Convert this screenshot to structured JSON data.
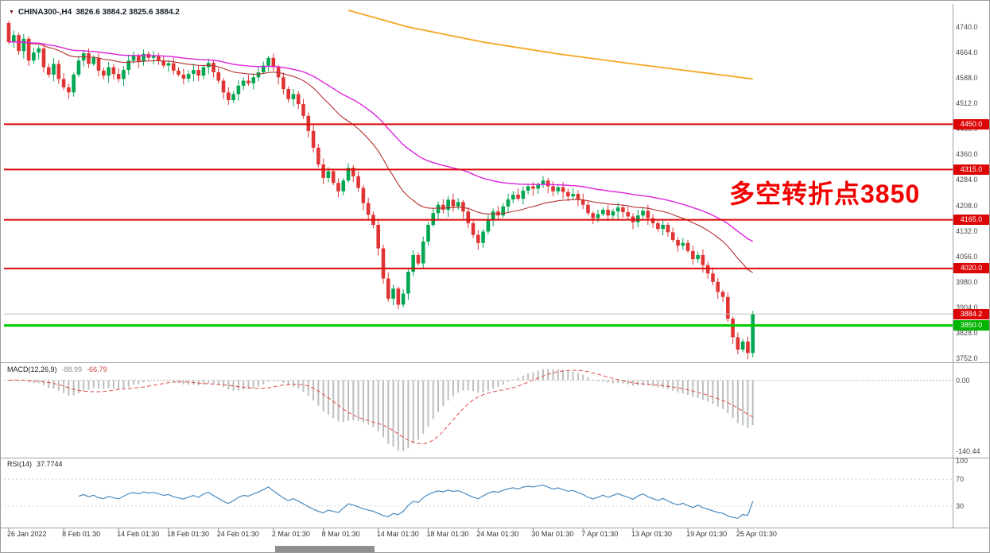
{
  "window": {
    "symbol_label": "CHINA300-,H4",
    "ohlc": "3826.6 3884.2 3825.6 3884.2",
    "annotation": "多空转折点3850"
  },
  "colors": {
    "background": "#ffffff",
    "up_candle": "#00a651",
    "down_candle": "#e03434",
    "ma_fast": "#b53030",
    "ma_slow": "#dd22dd",
    "ma_long": "#f5a623",
    "resistance_line": "#dd0606",
    "pivot_line": "#00ca00",
    "last_price_line": "#bdbdbd",
    "macd_histogram": "#bdbdbd",
    "macd_signal": "#e04848",
    "rsi_line": "#4a8bc2",
    "badge_red": "#dd0606",
    "badge_green": "#00b400",
    "annotation": "#f20000"
  },
  "main_chart": {
    "price_axis_labels": [
      "4740.0",
      "4664.0",
      "4588.0",
      "4512.0",
      "4436.0",
      "4360.0",
      "4284.0",
      "4208.0",
      "4132.0",
      "4056.0",
      "3980.0",
      "3904.0",
      "3828.0",
      "3752.0"
    ],
    "hlines": [
      {
        "price": 4450.0,
        "color": "#dd0606",
        "width": 2,
        "name": "resistance-line-4450"
      },
      {
        "price": 4315.0,
        "color": "#dd0606",
        "width": 2,
        "name": "resistance-line-4315"
      },
      {
        "price": 4165.0,
        "color": "#dd0606",
        "width": 2,
        "name": "resistance-line-4165"
      },
      {
        "price": 4020.0,
        "color": "#dd0606",
        "width": 2,
        "name": "resistance-line-4020"
      },
      {
        "price": 3884.2,
        "color": "#bdbdbd",
        "width": 1,
        "name": "last-price-line"
      },
      {
        "price": 3850.0,
        "color": "#00ca00",
        "width": 3,
        "name": "pivot-line-3850"
      }
    ],
    "badges": [
      {
        "text": "4450.0",
        "price": 4450.0,
        "color": "red"
      },
      {
        "text": "4315.0",
        "price": 4315.0,
        "color": "red"
      },
      {
        "text": "4165.0",
        "price": 4165.0,
        "color": "red"
      },
      {
        "text": "4020.0",
        "price": 4020.0,
        "color": "red"
      },
      {
        "text": "3884.2",
        "price": 3884.2,
        "color": "red"
      },
      {
        "text": "3850.0",
        "price": 3850.0,
        "color": "green"
      }
    ]
  },
  "macd": {
    "label": "MACD(12,26,9)",
    "value_main": "-88.99",
    "value_signal": "-66.79",
    "axis_labels": [
      {
        "text": "0.00",
        "at": "zero"
      },
      {
        "text": "-140.44",
        "at": "bottom"
      }
    ]
  },
  "rsi": {
    "label": "RSI(14)",
    "value": "37.7744",
    "axis_labels": [
      {
        "text": "100",
        "v": 100
      },
      {
        "text": "70",
        "v": 70
      },
      {
        "text": "30",
        "v": 30
      }
    ],
    "levels": [
      70,
      30
    ]
  },
  "chart_data": [
    {
      "type": "candlestick",
      "title": "CHINA300-,H4",
      "symbol": "CHINA300",
      "timeframe": "H4",
      "ohlc_display": {
        "open": 3826.6,
        "high": 3884.2,
        "low": 3825.6,
        "close": 3884.2
      },
      "ylim": [
        3740,
        4808
      ],
      "y_tick_step": 76.0,
      "hlines": [
        4450.0,
        4315.0,
        4165.0,
        4020.0,
        3850.0
      ],
      "last_price": 3884.2,
      "open_first": 4752,
      "closes": [
        4695,
        4716,
        4668,
        4705,
        4640,
        4664,
        4676,
        4620,
        4598,
        4630,
        4585,
        4560,
        4545,
        4598,
        4640,
        4662,
        4630,
        4648,
        4610,
        4595,
        4620,
        4600,
        4585,
        4612,
        4640,
        4655,
        4638,
        4660,
        4648,
        4655,
        4640,
        4625,
        4632,
        4610,
        4598,
        4586,
        4600,
        4612,
        4595,
        4620,
        4633,
        4605,
        4580,
        4545,
        4522,
        4540,
        4565,
        4580,
        4572,
        4590,
        4605,
        4625,
        4648,
        4620,
        4590,
        4555,
        4525,
        4540,
        4510,
        4475,
        4430,
        4380,
        4330,
        4290,
        4310,
        4275,
        4250,
        4282,
        4320,
        4295,
        4260,
        4215,
        4180,
        4150,
        4080,
        3990,
        3930,
        3960,
        3912,
        3945,
        4010,
        4060,
        4035,
        4100,
        4150,
        4185,
        4210,
        4195,
        4225,
        4205,
        4218,
        4190,
        4155,
        4120,
        4096,
        4130,
        4165,
        4190,
        4178,
        4205,
        4226,
        4240,
        4228,
        4252,
        4265,
        4258,
        4270,
        4282,
        4265,
        4250,
        4262,
        4248,
        4235,
        4242,
        4225,
        4210,
        4185,
        4170,
        4182,
        4195,
        4178,
        4190,
        4202,
        4188,
        4175,
        4158,
        4178,
        4192,
        4170,
        4155,
        4138,
        4150,
        4128,
        4105,
        4088,
        4096,
        4072,
        4048,
        4060,
        4030,
        4005,
        3980,
        3950,
        3935,
        3870,
        3815,
        3778,
        3802,
        3768,
        3884.2
      ],
      "moving_averages": [
        {
          "name": "ma-fast",
          "period": 30,
          "color": "#b53030"
        },
        {
          "name": "ma-slow",
          "period": 60,
          "color": "#dd22dd"
        }
      ],
      "orange_ma_points": [
        [
          68,
          4790
        ],
        [
          80,
          4740
        ],
        [
          95,
          4695
        ],
        [
          110,
          4660
        ],
        [
          125,
          4630
        ],
        [
          140,
          4602
        ],
        [
          149,
          4585
        ]
      ],
      "x_tick_labels": [
        {
          "text": "26 Jan 2022",
          "i": 0
        },
        {
          "text": "8 Feb 01:30",
          "i": 11
        },
        {
          "text": "14 Feb 01:30",
          "i": 22
        },
        {
          "text": "18 Feb 01:30",
          "i": 32
        },
        {
          "text": "24 Feb 01:30",
          "i": 42
        },
        {
          "text": "2 Mar 01:30",
          "i": 53
        },
        {
          "text": "8 Mar 01:30",
          "i": 63
        },
        {
          "text": "14 Mar 01:30",
          "i": 74
        },
        {
          "text": "18 Mar 01:30",
          "i": 84
        },
        {
          "text": "24 Mar 01:30",
          "i": 94
        },
        {
          "text": "30 Mar 01:30",
          "i": 105
        },
        {
          "text": "7 Apr 01:30",
          "i": 115
        },
        {
          "text": "13 Apr 01:30",
          "i": 125
        },
        {
          "text": "19 Apr 01:30",
          "i": 136
        },
        {
          "text": "25 Apr 01:30",
          "i": 146
        }
      ]
    },
    {
      "type": "macd",
      "label": "MACD(12,26,9)",
      "fast": 12,
      "slow": 26,
      "signal": 9,
      "derived_from": "closes",
      "display_values": [
        -88.99,
        -66.79
      ],
      "axis_min_label": -140.44
    },
    {
      "type": "rsi",
      "label": "RSI(14)",
      "period": 14,
      "derived_from": "closes",
      "display_value": 37.7744,
      "levels": [
        30,
        70
      ],
      "range": [
        0,
        100
      ]
    }
  ]
}
